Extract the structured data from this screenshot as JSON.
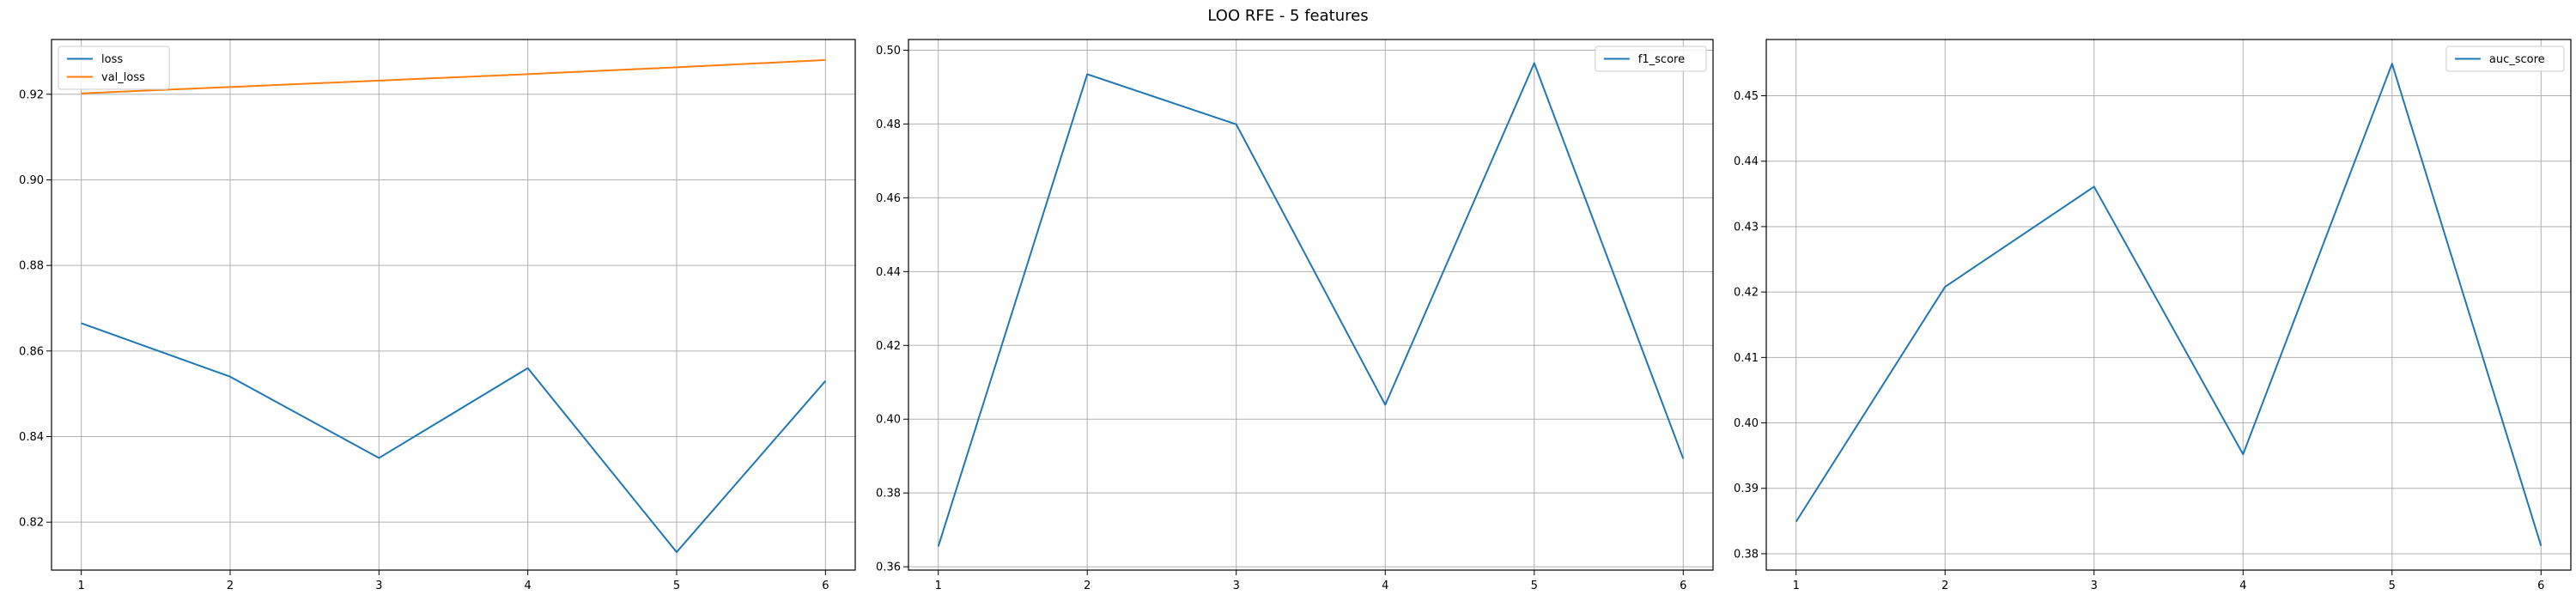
{
  "figure": {
    "title": "LOO RFE - 5 features"
  },
  "chart_data": [
    {
      "type": "line",
      "x": [
        1,
        2,
        3,
        4,
        5,
        6
      ],
      "series": [
        {
          "name": "loss",
          "color": "#1f77b4",
          "values": [
            0.8665,
            0.854,
            0.835,
            0.856,
            0.813,
            0.853
          ]
        },
        {
          "name": "val_loss",
          "color": "#ff7f0e",
          "values": [
            0.9202,
            0.9217,
            0.9232,
            0.9247,
            0.9263,
            0.928
          ]
        }
      ],
      "xlim": [
        0.8,
        6.2
      ],
      "ylim": [
        0.8088,
        0.9328
      ],
      "xticks": [
        1,
        2,
        3,
        4,
        5,
        6
      ],
      "yticks": [
        0.82,
        0.84,
        0.86,
        0.88,
        0.9,
        0.92
      ],
      "ytick_labels": [
        "0.82",
        "0.84",
        "0.86",
        "0.88",
        "0.90",
        "0.92"
      ],
      "grid": true,
      "legend": "top-left",
      "title": "",
      "xlabel": "",
      "ylabel": ""
    },
    {
      "type": "line",
      "x": [
        1,
        2,
        3,
        4,
        5,
        6
      ],
      "series": [
        {
          "name": "f1_score",
          "color": "#1f77b4",
          "values": [
            0.3655,
            0.4935,
            0.4799,
            0.4039,
            0.4965,
            0.3893
          ]
        }
      ],
      "xlim": [
        0.8,
        6.2
      ],
      "ylim": [
        0.3591,
        0.5029
      ],
      "xticks": [
        1,
        2,
        3,
        4,
        5,
        6
      ],
      "yticks": [
        0.36,
        0.38,
        0.4,
        0.42,
        0.44,
        0.46,
        0.48,
        0.5
      ],
      "ytick_labels": [
        "0.36",
        "0.38",
        "0.40",
        "0.42",
        "0.44",
        "0.46",
        "0.48",
        "0.50"
      ],
      "grid": true,
      "legend": "top-right",
      "title": "",
      "xlabel": "",
      "ylabel": ""
    },
    {
      "type": "line",
      "x": [
        1,
        2,
        3,
        4,
        5,
        6
      ],
      "series": [
        {
          "name": "auc_score",
          "color": "#1f77b4",
          "values": [
            0.3849,
            0.4208,
            0.4361,
            0.3952,
            0.4549,
            0.3812
          ]
        }
      ],
      "xlim": [
        0.8,
        6.2
      ],
      "ylim": [
        0.3775,
        0.4586
      ],
      "xticks": [
        1,
        2,
        3,
        4,
        5,
        6
      ],
      "yticks": [
        0.38,
        0.39,
        0.4,
        0.41,
        0.42,
        0.43,
        0.44,
        0.45
      ],
      "ytick_labels": [
        "0.38",
        "0.39",
        "0.40",
        "0.41",
        "0.42",
        "0.43",
        "0.44",
        "0.45"
      ],
      "grid": true,
      "legend": "top-right",
      "title": "",
      "xlabel": "",
      "ylabel": ""
    }
  ]
}
